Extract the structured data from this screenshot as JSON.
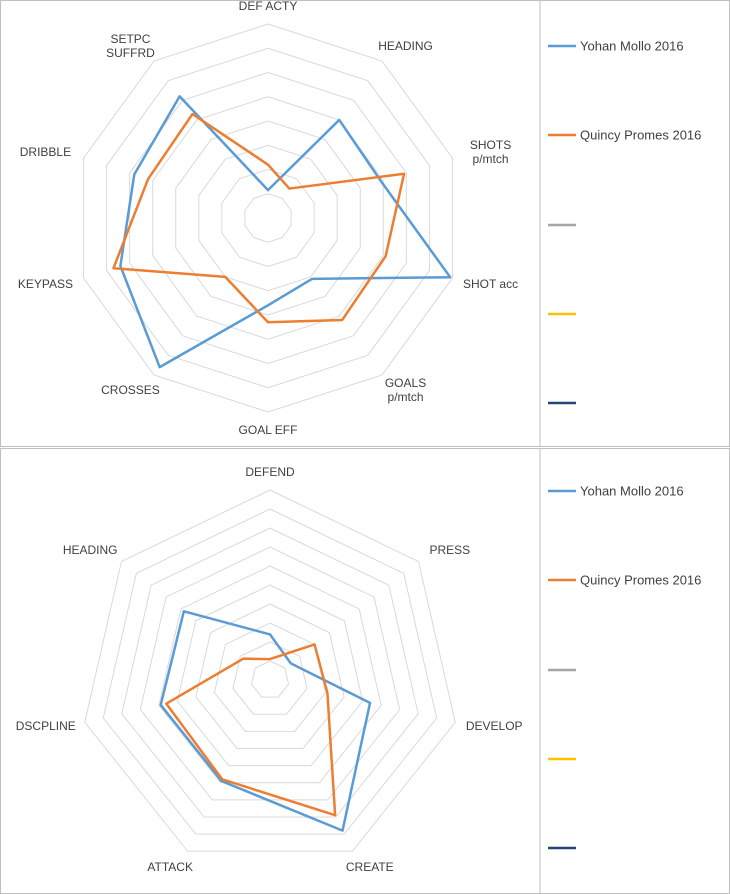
{
  "chart_data": [
    {
      "type": "radar",
      "categories": [
        "DEF ACTY",
        "HEADING",
        "SHOTS\np/mtch",
        "SHOT acc",
        "GOALS\np/mtch",
        "GOAL EFF",
        "CROSSES",
        "KEYPASS",
        "DRIBBLE",
        "SETPC\nSUFFRD"
      ],
      "ylim": [
        0,
        8
      ],
      "yticks": [
        0,
        1,
        2,
        3,
        4,
        5,
        6,
        7,
        8
      ],
      "series": [
        {
          "name": "Yohan Mollo 2016",
          "color": "#5b9bd5",
          "values": [
            1.15,
            5.0,
            4.9,
            7.9,
            3.1,
            3.6,
            7.6,
            6.4,
            5.8,
            6.2
          ]
        },
        {
          "name": "Quincy Promes 2016",
          "color": "#ed7d31",
          "values": [
            2.2,
            1.5,
            5.9,
            5.1,
            5.2,
            4.3,
            3.0,
            6.7,
            5.2,
            5.3
          ]
        }
      ]
    },
    {
      "type": "radar",
      "categories": [
        "DEFEND",
        "PRESS",
        "DEVELOP",
        "CREATE",
        "ATTACK",
        "DSCPLINE",
        "HEADING"
      ],
      "ylim": [
        0,
        10
      ],
      "yticks": [
        0,
        1,
        2,
        3,
        4,
        5,
        6,
        7,
        8,
        9,
        10
      ],
      "series": [
        {
          "name": "Yohan Mollo 2016",
          "color": "#5b9bd5",
          "values": [
            2.4,
            1.4,
            5.4,
            8.8,
            5.9,
            5.9,
            5.8
          ]
        },
        {
          "name": "Quincy Promes 2016",
          "color": "#ed7d31",
          "values": [
            1.1,
            3.0,
            3.1,
            7.9,
            5.8,
            5.6,
            1.8
          ]
        }
      ]
    }
  ]
}
